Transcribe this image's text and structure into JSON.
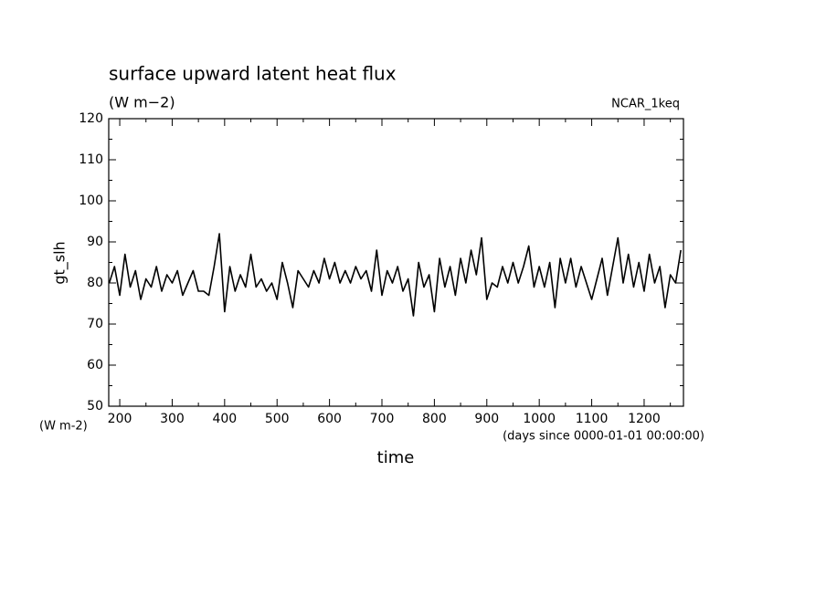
{
  "chart_data": {
    "type": "line",
    "title": "surface upward latent heat flux",
    "subtitle": "(W m−2)",
    "annotation": "NCAR_1keq",
    "y_label": "gt_slh",
    "y_unit_label": "(W m-2)",
    "x_label": "time",
    "x_unit_label": "(days since 0000-01-01 00:00:00)",
    "color": "#000000",
    "xlim": [
      179,
      1275
    ],
    "ylim": [
      50,
      120
    ],
    "xticks": [
      200,
      300,
      400,
      500,
      600,
      700,
      800,
      900,
      1000,
      1100,
      1200
    ],
    "yticks": [
      50,
      60,
      70,
      80,
      90,
      100,
      110,
      120
    ],
    "xminorticks": [
      250,
      350,
      450,
      550,
      650,
      750,
      850,
      950,
      1050,
      1150,
      1250
    ],
    "yminorticks": [
      55,
      65,
      75,
      85,
      95,
      105,
      115
    ],
    "x": [
      180,
      190,
      200,
      210,
      220,
      230,
      240,
      250,
      260,
      270,
      280,
      290,
      300,
      310,
      320,
      330,
      340,
      350,
      360,
      370,
      380,
      390,
      400,
      410,
      420,
      430,
      440,
      450,
      460,
      470,
      480,
      490,
      500,
      510,
      520,
      530,
      540,
      550,
      560,
      570,
      580,
      590,
      600,
      610,
      620,
      630,
      640,
      650,
      660,
      670,
      680,
      690,
      700,
      710,
      720,
      730,
      740,
      750,
      760,
      770,
      780,
      790,
      800,
      810,
      820,
      830,
      840,
      850,
      860,
      870,
      880,
      890,
      900,
      910,
      920,
      930,
      940,
      950,
      960,
      970,
      980,
      990,
      1000,
      1010,
      1020,
      1030,
      1040,
      1050,
      1060,
      1070,
      1080,
      1090,
      1100,
      1110,
      1120,
      1130,
      1140,
      1150,
      1160,
      1170,
      1180,
      1190,
      1200,
      1210,
      1220,
      1230,
      1240,
      1250,
      1260,
      1270
    ],
    "values": [
      80,
      84,
      77,
      87,
      79,
      83,
      76,
      81,
      79,
      84,
      78,
      82,
      80,
      83,
      77,
      80,
      83,
      78,
      78,
      77,
      84,
      92,
      73,
      84,
      78,
      82,
      79,
      87,
      79,
      81,
      78,
      80,
      76,
      85,
      80,
      74,
      83,
      81,
      79,
      83,
      80,
      86,
      81,
      85,
      80,
      83,
      80,
      84,
      81,
      83,
      78,
      88,
      77,
      83,
      80,
      84,
      78,
      81,
      72,
      85,
      79,
      82,
      73,
      86,
      79,
      84,
      77,
      86,
      80,
      88,
      82,
      91,
      76,
      80,
      79,
      84,
      80,
      85,
      80,
      84,
      89,
      79,
      84,
      79,
      85,
      74,
      86,
      80,
      86,
      79,
      84,
      80,
      76,
      81,
      86,
      77,
      84,
      91,
      80,
      87,
      79,
      85,
      78,
      87,
      80,
      84,
      74,
      82,
      80,
      88
    ]
  }
}
